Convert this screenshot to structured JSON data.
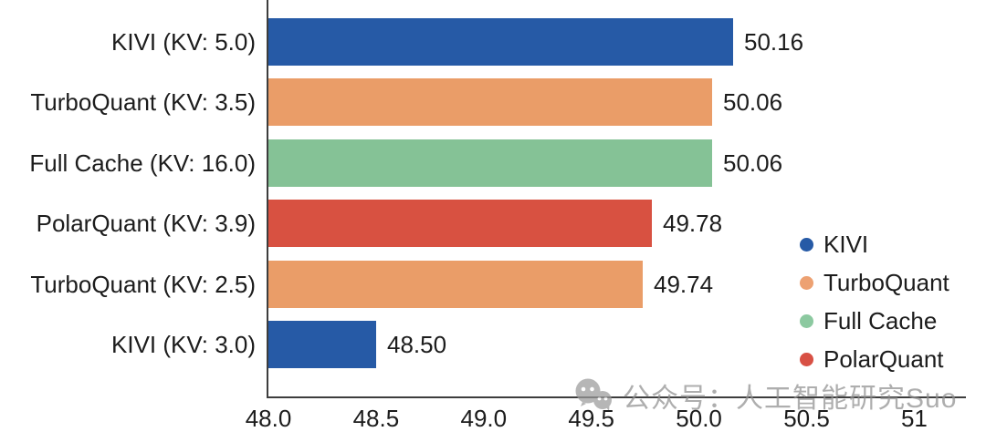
{
  "chart_data": {
    "type": "bar",
    "orientation": "horizontal",
    "title": "",
    "xlabel": "",
    "ylabel": "",
    "xlim": [
      48.0,
      51.24
    ],
    "grid": false,
    "categories": [
      "KIVI (KV: 5.0)",
      "TurboQuant (KV: 3.5)",
      "Full Cache (KV: 16.0)",
      "PolarQuant (KV: 3.9)",
      "TurboQuant (KV: 2.5)",
      "KIVI (KV: 3.0)"
    ],
    "values": [
      50.16,
      50.06,
      50.06,
      49.78,
      49.74,
      48.5
    ],
    "value_labels": [
      "50.16",
      "50.06",
      "50.06",
      "49.78",
      "49.74",
      "48.50"
    ],
    "bar_series": [
      "KIVI",
      "TurboQuant",
      "Full Cache",
      "PolarQuant",
      "TurboQuant",
      "KIVI"
    ],
    "palette": {
      "KIVI": "#265aa6",
      "TurboQuant": "#ea9d68",
      "Full Cache": "#85c296",
      "PolarQuant": "#d85141"
    },
    "x_ticks": [
      {
        "value": 48.0,
        "label": "48.0"
      },
      {
        "value": 48.5,
        "label": "48.5"
      },
      {
        "value": 49.0,
        "label": "49.0"
      },
      {
        "value": 49.5,
        "label": "49.5"
      },
      {
        "value": 50.0,
        "label": "50.0"
      },
      {
        "value": 50.5,
        "label": "50.5"
      },
      {
        "value": 51.0,
        "label": "51"
      }
    ],
    "legend": {
      "position": "lower-right",
      "entries": [
        {
          "label": "KIVI",
          "color": "#265aa6"
        },
        {
          "label": "TurboQuant",
          "color": "#eda172"
        },
        {
          "label": "Full Cache",
          "color": "#8cc9a0"
        },
        {
          "label": "PolarQuant",
          "color": "#d85044"
        }
      ]
    },
    "spine_color": "#3d3d3d"
  },
  "watermark": {
    "text": "公众号：人工智能研究Suo",
    "icon": "wechat-official-account-logo",
    "color": "#8f8f8f"
  }
}
